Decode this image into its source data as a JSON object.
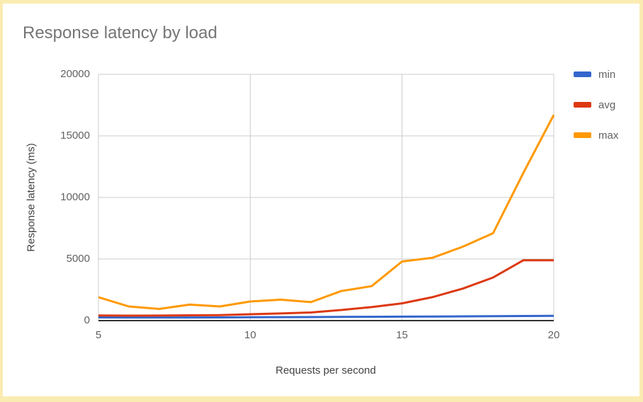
{
  "page": {
    "border_color": "#faecb0",
    "background_color": "#ffffff"
  },
  "chart_data": {
    "type": "line",
    "title": "Response latency by load",
    "xlabel": "Requests per second",
    "ylabel": "Response latency (ms)",
    "x": [
      5,
      6,
      7,
      8,
      9,
      10,
      11,
      12,
      13,
      14,
      15,
      16,
      17,
      18,
      19,
      20
    ],
    "series": [
      {
        "name": "min",
        "color": "#3366cc",
        "values": [
          260,
          255,
          250,
          255,
          260,
          270,
          280,
          290,
          300,
          310,
          320,
          330,
          345,
          360,
          375,
          390
        ]
      },
      {
        "name": "avg",
        "color": "#dc3912",
        "values": [
          420,
          400,
          410,
          430,
          450,
          520,
          580,
          660,
          860,
          1100,
          1400,
          1900,
          2600,
          3500,
          4900,
          4900
        ]
      },
      {
        "name": "max",
        "color": "#ff9900",
        "values": [
          1900,
          1150,
          950,
          1300,
          1150,
          1550,
          1700,
          1500,
          2400,
          2800,
          4800,
          5100,
          6000,
          7100,
          12000,
          16700
        ]
      }
    ],
    "xlim": [
      5,
      20
    ],
    "ylim": [
      0,
      20000
    ],
    "xticks": [
      5,
      10,
      15,
      20
    ],
    "yticks": [
      0,
      5000,
      10000,
      15000,
      20000
    ],
    "grid": true,
    "legend_position": "right",
    "gridline_color": "#cccccc",
    "axis_line_color": "#333333",
    "tick_label_color": "#616161",
    "title_color": "#757575"
  }
}
